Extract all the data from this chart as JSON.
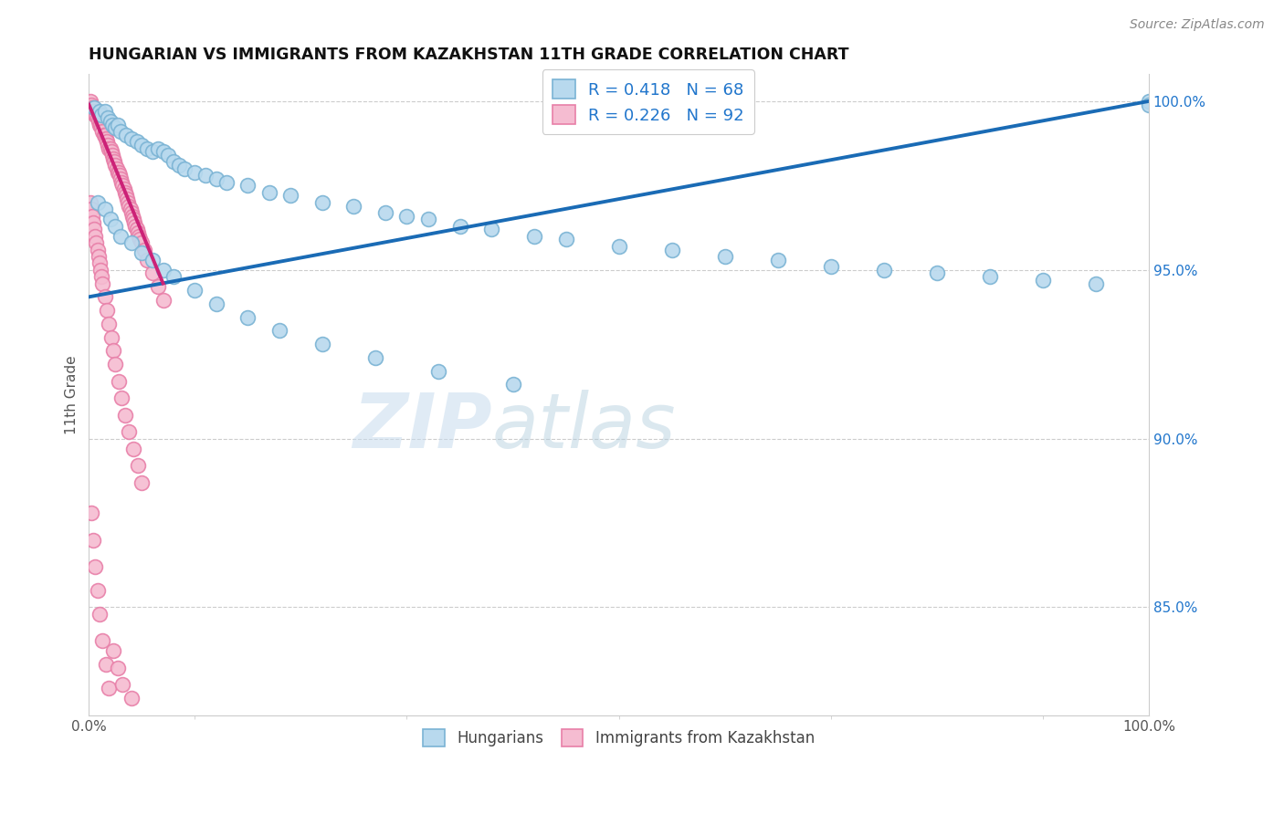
{
  "title": "HUNGARIAN VS IMMIGRANTS FROM KAZAKHSTAN 11TH GRADE CORRELATION CHART",
  "source_text": "Source: ZipAtlas.com",
  "ylabel": "11th Grade",
  "xlim": [
    0.0,
    1.0
  ],
  "ylim": [
    0.818,
    1.008
  ],
  "yticks": [
    0.85,
    0.9,
    0.95,
    1.0
  ],
  "ytick_labels": [
    "85.0%",
    "90.0%",
    "95.0%",
    "100.0%"
  ],
  "blue_edge_color": "#7ab3d4",
  "blue_face_color": "#b8d9ee",
  "pink_edge_color": "#e87fa8",
  "pink_face_color": "#f5bcd1",
  "trend_blue_color": "#1a6bb5",
  "trend_pink_color": "#cc2277",
  "legend_line1": "R = 0.418   N = 68",
  "legend_line2": "R = 0.226   N = 92",
  "legend_color": "#2176cc",
  "legend_labels": [
    "Hungarians",
    "Immigrants from Kazakhstan"
  ],
  "watermark_text": "ZIPatlas",
  "blue_x": [
    0.005,
    0.01,
    0.012,
    0.015,
    0.018,
    0.02,
    0.022,
    0.025,
    0.027,
    0.03,
    0.035,
    0.04,
    0.045,
    0.05,
    0.055,
    0.06,
    0.065,
    0.07,
    0.075,
    0.08,
    0.085,
    0.09,
    0.1,
    0.11,
    0.12,
    0.13,
    0.15,
    0.17,
    0.19,
    0.22,
    0.25,
    0.28,
    0.3,
    0.32,
    0.35,
    0.38,
    0.42,
    0.45,
    0.5,
    0.55,
    0.6,
    0.65,
    0.7,
    0.75,
    0.8,
    0.85,
    0.9,
    0.95,
    1.0,
    0.008,
    0.015,
    0.02,
    0.025,
    0.03,
    0.04,
    0.05,
    0.06,
    0.07,
    0.08,
    0.1,
    0.12,
    0.15,
    0.18,
    0.22,
    0.27,
    0.33,
    0.4,
    1.0
  ],
  "blue_y": [
    0.998,
    0.997,
    0.996,
    0.997,
    0.995,
    0.994,
    0.993,
    0.992,
    0.993,
    0.991,
    0.99,
    0.989,
    0.988,
    0.987,
    0.986,
    0.985,
    0.986,
    0.985,
    0.984,
    0.982,
    0.981,
    0.98,
    0.979,
    0.978,
    0.977,
    0.976,
    0.975,
    0.973,
    0.972,
    0.97,
    0.969,
    0.967,
    0.966,
    0.965,
    0.963,
    0.962,
    0.96,
    0.959,
    0.957,
    0.956,
    0.954,
    0.953,
    0.951,
    0.95,
    0.949,
    0.948,
    0.947,
    0.946,
    1.0,
    0.97,
    0.968,
    0.965,
    0.963,
    0.96,
    0.958,
    0.955,
    0.953,
    0.95,
    0.948,
    0.944,
    0.94,
    0.936,
    0.932,
    0.928,
    0.924,
    0.92,
    0.916,
    0.999
  ],
  "pink_x": [
    0.001,
    0.002,
    0.003,
    0.004,
    0.005,
    0.006,
    0.007,
    0.008,
    0.009,
    0.01,
    0.011,
    0.012,
    0.013,
    0.014,
    0.015,
    0.016,
    0.017,
    0.018,
    0.019,
    0.02,
    0.021,
    0.022,
    0.023,
    0.024,
    0.025,
    0.026,
    0.027,
    0.028,
    0.029,
    0.03,
    0.031,
    0.032,
    0.033,
    0.034,
    0.035,
    0.036,
    0.037,
    0.038,
    0.039,
    0.04,
    0.041,
    0.042,
    0.043,
    0.044,
    0.045,
    0.046,
    0.047,
    0.048,
    0.05,
    0.052,
    0.055,
    0.06,
    0.065,
    0.07,
    0.001,
    0.002,
    0.003,
    0.004,
    0.005,
    0.006,
    0.007,
    0.008,
    0.009,
    0.01,
    0.011,
    0.012,
    0.013,
    0.015,
    0.017,
    0.019,
    0.021,
    0.023,
    0.025,
    0.028,
    0.031,
    0.034,
    0.038,
    0.042,
    0.046,
    0.05,
    0.002,
    0.004,
    0.006,
    0.008,
    0.01,
    0.013,
    0.016,
    0.019,
    0.023,
    0.027,
    0.032,
    0.04
  ],
  "pink_y": [
    1.0,
    0.999,
    0.998,
    0.998,
    0.997,
    0.996,
    0.996,
    0.995,
    0.994,
    0.993,
    0.993,
    0.992,
    0.991,
    0.99,
    0.99,
    0.989,
    0.988,
    0.987,
    0.986,
    0.986,
    0.985,
    0.984,
    0.983,
    0.982,
    0.981,
    0.98,
    0.979,
    0.979,
    0.978,
    0.977,
    0.976,
    0.975,
    0.974,
    0.973,
    0.972,
    0.971,
    0.97,
    0.969,
    0.968,
    0.967,
    0.966,
    0.965,
    0.964,
    0.963,
    0.962,
    0.961,
    0.96,
    0.959,
    0.958,
    0.956,
    0.953,
    0.949,
    0.945,
    0.941,
    0.97,
    0.968,
    0.966,
    0.964,
    0.962,
    0.96,
    0.958,
    0.956,
    0.954,
    0.952,
    0.95,
    0.948,
    0.946,
    0.942,
    0.938,
    0.934,
    0.93,
    0.926,
    0.922,
    0.917,
    0.912,
    0.907,
    0.902,
    0.897,
    0.892,
    0.887,
    0.878,
    0.87,
    0.862,
    0.855,
    0.848,
    0.84,
    0.833,
    0.826,
    0.837,
    0.832,
    0.827,
    0.823
  ],
  "blue_trend_x": [
    0.0,
    1.0
  ],
  "blue_trend_y": [
    0.942,
    1.0
  ],
  "pink_trend_x": [
    0.0,
    0.07
  ],
  "pink_trend_y": [
    0.999,
    0.946
  ]
}
